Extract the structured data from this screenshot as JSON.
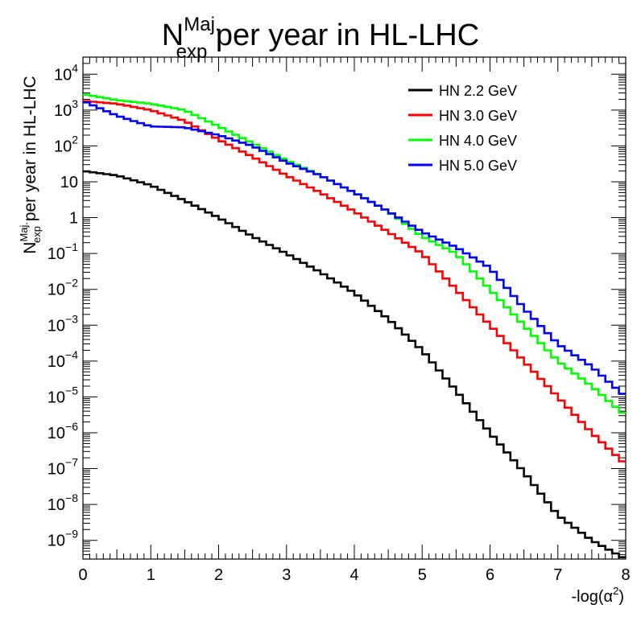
{
  "chart_data": {
    "type": "line",
    "title": {
      "base": "N",
      "sub": "exp",
      "sup": "Maj.",
      "rest": " per year in HL-LHC"
    },
    "xlabel": "-log(α²)",
    "ylabel": "N_exp^Maj. per year in HL-LHC",
    "xlim": [
      0,
      8
    ],
    "ylim": [
      3e-10,
      30000
    ],
    "yscale": "log",
    "grid": false,
    "legend_position": "top-right",
    "x_ticks": [
      "0",
      "1",
      "2",
      "3",
      "4",
      "5",
      "6",
      "7",
      "8"
    ],
    "y_ticks": [
      {
        "value": 1e-09,
        "base": "10",
        "exp": "−9"
      },
      {
        "value": 1e-08,
        "base": "10",
        "exp": "−8"
      },
      {
        "value": 1e-07,
        "base": "10",
        "exp": "−7"
      },
      {
        "value": 1e-06,
        "base": "10",
        "exp": "−6"
      },
      {
        "value": 1e-05,
        "base": "10",
        "exp": "−5"
      },
      {
        "value": 0.0001,
        "base": "10",
        "exp": "−4"
      },
      {
        "value": 0.001,
        "base": "10",
        "exp": "−3"
      },
      {
        "value": 0.01,
        "base": "10",
        "exp": "−2"
      },
      {
        "value": 0.1,
        "base": "10",
        "exp": "−1"
      },
      {
        "value": 1,
        "base": "1",
        "exp": ""
      },
      {
        "value": 10,
        "base": "10",
        "exp": ""
      },
      {
        "value": 100,
        "base": "10",
        "exp": "2"
      },
      {
        "value": 1000,
        "base": "10",
        "exp": "3"
      },
      {
        "value": 10000,
        "base": "10",
        "exp": "4"
      }
    ],
    "series": [
      {
        "name": "HN 2.2 GeV",
        "color": "#000000",
        "x": [
          0,
          0.5,
          1,
          1.5,
          2,
          2.5,
          3,
          3.5,
          4,
          4.5,
          5,
          5.5,
          6,
          6.5,
          7,
          7.5,
          8
        ],
        "y": [
          20,
          15,
          8,
          3,
          1,
          0.3,
          0.1,
          0.03,
          0.008,
          0.0015,
          0.0002,
          1.5e-05,
          1e-06,
          8e-08,
          5e-09,
          1e-09,
          3e-10
        ]
      },
      {
        "name": "HN 3.0 GeV",
        "color": "#ff0000",
        "x": [
          0,
          0.5,
          1,
          1.5,
          2,
          2.5,
          3,
          3.5,
          4,
          4.5,
          5,
          5.5,
          6,
          6.5,
          7,
          7.5,
          8
        ],
        "y": [
          1800,
          1500,
          1000,
          500,
          150,
          50,
          15,
          5,
          1.5,
          0.4,
          0.1,
          0.01,
          0.001,
          0.0001,
          1e-05,
          1e-06,
          1.3e-07
        ]
      },
      {
        "name": "HN 4.0 GeV",
        "color": "#00ff00",
        "x": [
          0,
          0.5,
          1,
          1.5,
          2,
          2.5,
          3,
          3.5,
          4,
          4.5,
          5,
          5.5,
          6,
          6.5,
          7,
          7.5,
          8
        ],
        "y": [
          2800,
          1900,
          1500,
          1000,
          350,
          120,
          40,
          15,
          5,
          1.5,
          0.3,
          0.1,
          0.01,
          0.001,
          0.0001,
          2e-05,
          3e-06
        ]
      },
      {
        "name": "HN 5.0 GeV",
        "color": "#0000ff",
        "x": [
          0,
          0.5,
          1,
          1.5,
          2,
          2.5,
          3,
          3.5,
          4,
          4.5,
          5,
          5.5,
          6,
          6.5,
          7,
          7.5,
          8
        ],
        "y": [
          1800,
          700,
          350,
          330,
          200,
          100,
          35,
          15,
          5,
          1.5,
          0.4,
          0.15,
          0.04,
          0.003,
          0.0003,
          7e-05,
          1e-05
        ]
      }
    ]
  }
}
